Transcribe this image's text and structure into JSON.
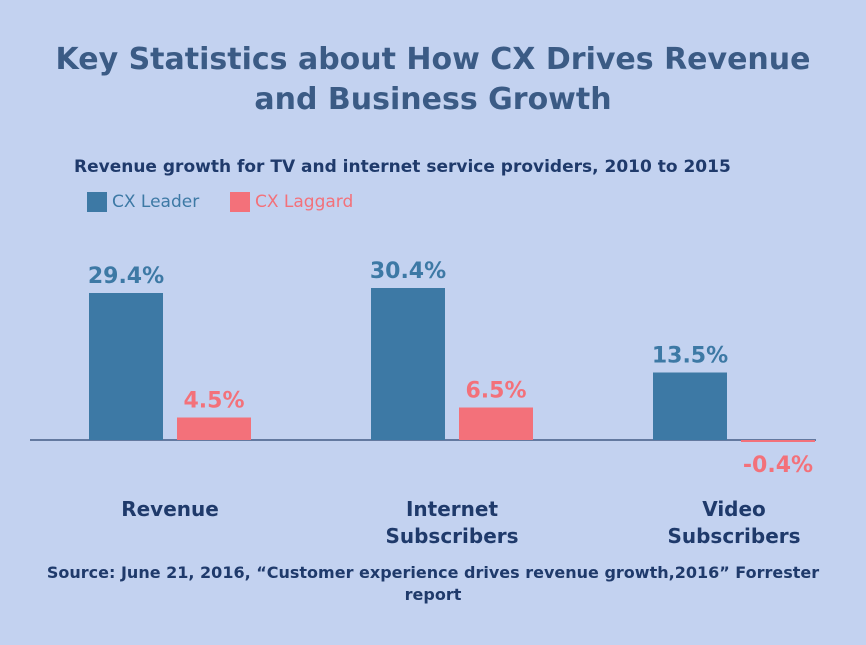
{
  "title_lines": [
    "Key Statistics about How CX Drives Revenue",
    "and Business Growth"
  ],
  "colors": {
    "background": "#c3d2f0",
    "leader": "#3d79a5",
    "laggard": "#f3717a",
    "title": "#3b5b85",
    "text": "#1f3a6b"
  },
  "chart_data": {
    "type": "bar",
    "title": "Revenue growth for TV and internet service providers, 2010 to 2015",
    "categories": [
      [
        "Revenue"
      ],
      [
        "Internet",
        "Subscribers"
      ],
      [
        "Video",
        "Subscribers"
      ]
    ],
    "series": [
      {
        "name": "CX Leader",
        "values": [
          29.4,
          30.4,
          13.5
        ],
        "labels": [
          "29.4%",
          "30.4%",
          "13.5%"
        ]
      },
      {
        "name": "CX Laggard",
        "values": [
          4.5,
          6.5,
          -0.4
        ],
        "labels": [
          "4.5%",
          "6.5%",
          "-0.4%"
        ]
      }
    ],
    "unit": "%",
    "grid": false,
    "legend_position": "top-left"
  },
  "source": "Source: June 21, 2016, “Customer experience drives revenue growth,2016” Forrester report"
}
